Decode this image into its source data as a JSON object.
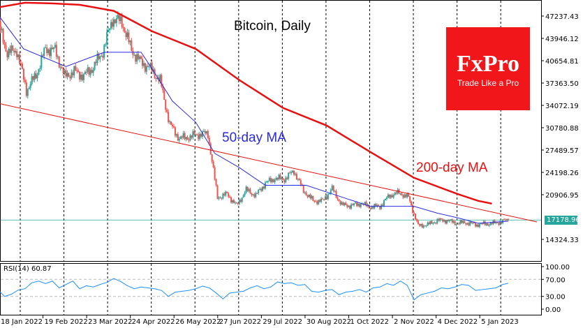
{
  "chart_data": {
    "type": "candlestick",
    "title": "Bitcoin, Daily",
    "start_date": "2022-01-01",
    "x_tick_labels": [
      {
        "label": "18 Jan 2022",
        "day": 17
      },
      {
        "label": "19 Feb 2022",
        "day": 49
      },
      {
        "label": "23 Mar 2022",
        "day": 81
      },
      {
        "label": "24 Apr 2022",
        "day": 113
      },
      {
        "label": "26 May 2022",
        "day": 145
      },
      {
        "label": "27 Jun 2022",
        "day": 177
      },
      {
        "label": "29 Jul 2022",
        "day": 209
      },
      {
        "label": "30 Aug 2022",
        "day": 241
      },
      {
        "label": "1 Oct 2022",
        "day": 273
      },
      {
        "label": "2 Nov 2022",
        "day": 305
      },
      {
        "label": "4 Dec 2022",
        "day": 337
      },
      {
        "label": "5 Jan 2023",
        "day": 369
      }
    ],
    "y_tick_labels": [
      "47237.43",
      "43946.12",
      "40654.81",
      "37363.50",
      "34072.19",
      "30780.88",
      "27489.57",
      "24198.26",
      "20906.95",
      "14324.33"
    ],
    "ylim": [
      11500,
      49600
    ],
    "current_price": "17178.96",
    "current_price_value": 17178.96,
    "closes": [
      [
        0,
        46400
      ],
      [
        7,
        41800
      ],
      [
        14,
        42200
      ],
      [
        21,
        36300
      ],
      [
        28,
        38500
      ],
      [
        35,
        42400
      ],
      [
        42,
        42200
      ],
      [
        49,
        38300
      ],
      [
        56,
        39100
      ],
      [
        63,
        38400
      ],
      [
        70,
        39700
      ],
      [
        77,
        42000
      ],
      [
        84,
        46800
      ],
      [
        91,
        46400
      ],
      [
        98,
        42200
      ],
      [
        105,
        40400
      ],
      [
        112,
        39500
      ],
      [
        119,
        37700
      ],
      [
        126,
        31300
      ],
      [
        133,
        29200
      ],
      [
        140,
        29400
      ],
      [
        147,
        29800
      ],
      [
        154,
        29900
      ],
      [
        161,
        20500
      ],
      [
        168,
        21000
      ],
      [
        175,
        19300
      ],
      [
        182,
        21600
      ],
      [
        189,
        20800
      ],
      [
        196,
        22600
      ],
      [
        203,
        23300
      ],
      [
        210,
        23200
      ],
      [
        217,
        24400
      ],
      [
        224,
        21500
      ],
      [
        231,
        20000
      ],
      [
        238,
        20000
      ],
      [
        245,
        21800
      ],
      [
        252,
        19400
      ],
      [
        259,
        19300
      ],
      [
        266,
        19600
      ],
      [
        273,
        19100
      ],
      [
        280,
        19200
      ],
      [
        287,
        20800
      ],
      [
        294,
        21200
      ],
      [
        301,
        20500
      ],
      [
        308,
        16300
      ],
      [
        315,
        16500
      ],
      [
        322,
        17100
      ],
      [
        329,
        17100
      ],
      [
        336,
        16700
      ],
      [
        343,
        16800
      ],
      [
        350,
        16500
      ],
      [
        357,
        16600
      ],
      [
        364,
        16700
      ],
      [
        374,
        17178.96
      ]
    ],
    "series": [
      {
        "name": "50-day MA",
        "label": "50-day MA",
        "color": "#2a2ae0",
        "values": [
          [
            0,
            47500
          ],
          [
            19,
            42400
          ],
          [
            50,
            39800
          ],
          [
            78,
            41900
          ],
          [
            105,
            41900
          ],
          [
            112,
            39800
          ],
          [
            128,
            34700
          ],
          [
            145,
            31600
          ],
          [
            159,
            27000
          ],
          [
            177,
            24900
          ],
          [
            196,
            22300
          ],
          [
            209,
            22300
          ],
          [
            226,
            22300
          ],
          [
            241,
            21300
          ],
          [
            256,
            20300
          ],
          [
            273,
            19200
          ],
          [
            293,
            19200
          ],
          [
            305,
            19200
          ],
          [
            322,
            18200
          ],
          [
            337,
            17500
          ],
          [
            352,
            16700
          ],
          [
            374,
            17000
          ]
        ]
      },
      {
        "name": "200-day MA",
        "label": "200-day MA",
        "color": "#e81010",
        "values": [
          [
            0,
            48500
          ],
          [
            20,
            49200
          ],
          [
            40,
            49100
          ],
          [
            60,
            48900
          ],
          [
            85,
            48000
          ],
          [
            113,
            45000
          ],
          [
            145,
            42400
          ],
          [
            177,
            37800
          ],
          [
            209,
            33700
          ],
          [
            241,
            31100
          ],
          [
            273,
            27200
          ],
          [
            305,
            23400
          ],
          [
            337,
            21000
          ],
          [
            352,
            20000
          ],
          [
            362,
            19600
          ]
        ]
      },
      {
        "name": "Trendline",
        "color": "#e81010",
        "values": [
          [
            -2,
            34480
          ],
          [
            395,
            16900
          ]
        ]
      }
    ],
    "rsi": {
      "label": "RSI(14) 60.87",
      "period": 14,
      "value": 60.87,
      "ylim": [
        0,
        100
      ],
      "levels": [
        70,
        30
      ],
      "tick_labels": [
        "100.00",
        "70.00",
        "30.00",
        "0.00"
      ],
      "color": "#1e90ff",
      "values": [
        [
          0,
          46
        ],
        [
          5,
          30
        ],
        [
          10,
          35
        ],
        [
          15,
          45
        ],
        [
          20,
          48
        ],
        [
          25,
          62
        ],
        [
          30,
          66
        ],
        [
          35,
          60
        ],
        [
          40,
          66
        ],
        [
          45,
          50
        ],
        [
          50,
          58
        ],
        [
          55,
          66
        ],
        [
          60,
          48
        ],
        [
          65,
          55
        ],
        [
          70,
          52
        ],
        [
          75,
          58
        ],
        [
          80,
          63
        ],
        [
          85,
          72
        ],
        [
          90,
          65
        ],
        [
          95,
          55
        ],
        [
          100,
          48
        ],
        [
          105,
          52
        ],
        [
          110,
          50
        ],
        [
          115,
          48
        ],
        [
          120,
          44
        ],
        [
          125,
          30
        ],
        [
          130,
          40
        ],
        [
          135,
          42
        ],
        [
          140,
          44
        ],
        [
          145,
          48
        ],
        [
          150,
          54
        ],
        [
          155,
          50
        ],
        [
          160,
          38
        ],
        [
          165,
          24
        ],
        [
          170,
          38
        ],
        [
          175,
          40
        ],
        [
          180,
          42
        ],
        [
          185,
          50
        ],
        [
          190,
          55
        ],
        [
          195,
          48
        ],
        [
          200,
          52
        ],
        [
          205,
          64
        ],
        [
          210,
          60
        ],
        [
          215,
          62
        ],
        [
          220,
          56
        ],
        [
          225,
          58
        ],
        [
          230,
          42
        ],
        [
          235,
          40
        ],
        [
          240,
          44
        ],
        [
          245,
          46
        ],
        [
          250,
          34
        ],
        [
          255,
          40
        ],
        [
          260,
          42
        ],
        [
          265,
          46
        ],
        [
          270,
          40
        ],
        [
          275,
          50
        ],
        [
          280,
          52
        ],
        [
          285,
          60
        ],
        [
          290,
          56
        ],
        [
          295,
          66
        ],
        [
          300,
          56
        ],
        [
          305,
          22
        ],
        [
          310,
          34
        ],
        [
          315,
          38
        ],
        [
          320,
          42
        ],
        [
          325,
          50
        ],
        [
          330,
          48
        ],
        [
          335,
          52
        ],
        [
          340,
          58
        ],
        [
          345,
          56
        ],
        [
          350,
          44
        ],
        [
          355,
          46
        ],
        [
          360,
          48
        ],
        [
          365,
          50
        ],
        [
          370,
          58
        ],
        [
          374,
          60.87
        ]
      ]
    }
  },
  "logo": {
    "brand": "FxPro",
    "tagline": "Trade Like a Pro"
  }
}
